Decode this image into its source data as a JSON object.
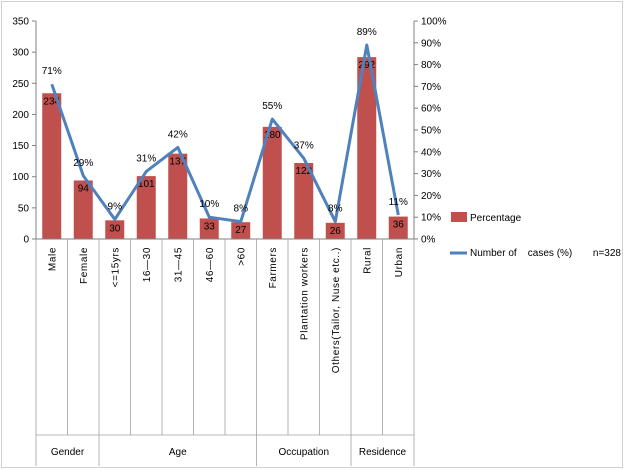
{
  "chart_data": {
    "type": "bar",
    "categories": [
      "Male",
      "Female",
      "<=15yrs",
      "16—30",
      "31—45",
      "46—60",
      ">60",
      "Farmers",
      "Plantation workers",
      "Others(Tailor, Nuse etc..)",
      "Rural",
      "Urban"
    ],
    "groups": [
      {
        "label": "Gender",
        "count": 2
      },
      {
        "label": "Age",
        "count": 5
      },
      {
        "label": "Occupation",
        "count": 3
      },
      {
        "label": "Residence",
        "count": 2
      }
    ],
    "series": [
      {
        "name": "Percentage",
        "kind": "bar",
        "axis": "left",
        "values": [
          234,
          94,
          30,
          101,
          137,
          33,
          27,
          180,
          122,
          26,
          292,
          36
        ],
        "color": "#c0504d"
      },
      {
        "name": "Number of    cases (%)",
        "kind": "line",
        "axis": "right",
        "values": [
          71,
          29,
          9,
          31,
          42,
          10,
          8,
          55,
          37,
          8,
          89,
          11
        ],
        "color": "#4f81bd"
      }
    ],
    "bar_labels": [
      "234",
      "94",
      "30",
      "101",
      "137",
      "33",
      "27",
      "180",
      "122",
      "26",
      "292",
      "36"
    ],
    "line_labels": [
      "71%",
      "29%",
      "9%",
      "31%",
      "42%",
      "10%",
      "8%",
      "55%",
      "37%",
      "8%",
      "89%",
      "11%"
    ],
    "ylim_left": [
      0,
      350
    ],
    "yticks_left": [
      "0",
      "50",
      "100",
      "150",
      "200",
      "250",
      "300",
      "350"
    ],
    "ylim_right": [
      0,
      100
    ],
    "yticks_right": [
      "0%",
      "10%",
      "20%",
      "30%",
      "40%",
      "50%",
      "60%",
      "70%",
      "80%",
      "90%",
      "100%"
    ],
    "legend_position": "right",
    "note": "n=328"
  }
}
